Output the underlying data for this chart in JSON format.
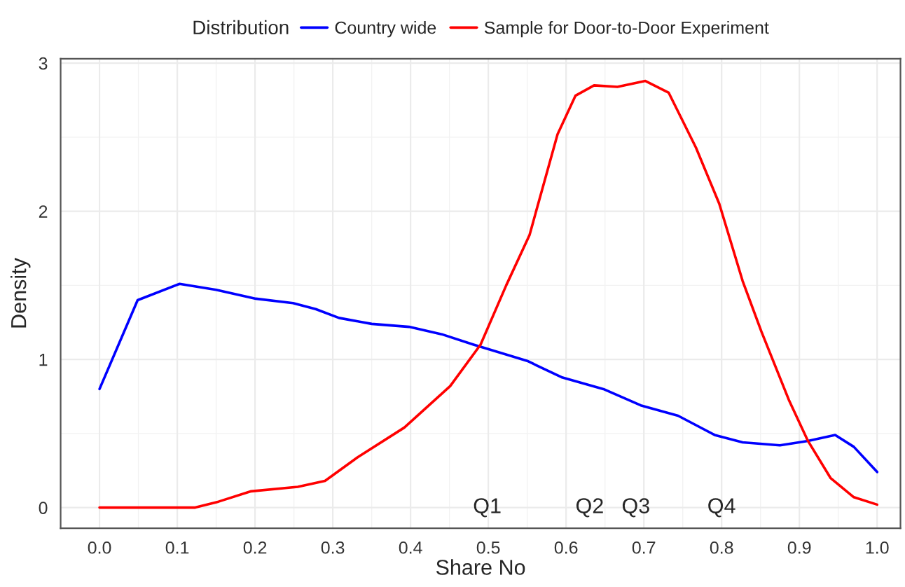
{
  "chart_data": {
    "type": "line",
    "xlabel": "Share No",
    "ylabel": "Density",
    "legend_title": "Distribution",
    "legend": "top",
    "grid": true,
    "line_style": "solid",
    "marker": "none",
    "xlim": [
      -0.05,
      1.03
    ],
    "ylim": [
      -0.14,
      3.03
    ],
    "xticks": [
      {
        "value": 0,
        "label": "0.0"
      },
      {
        "value": 0.1,
        "label": "0.1"
      },
      {
        "value": 0.2,
        "label": "0.2"
      },
      {
        "value": 0.3,
        "label": "0.3"
      },
      {
        "value": 0.4,
        "label": "0.4"
      },
      {
        "value": 0.5,
        "label": "0.5"
      },
      {
        "value": 0.6,
        "label": "0.6"
      },
      {
        "value": 0.7,
        "label": "0.7"
      },
      {
        "value": 0.8,
        "label": "0.8"
      },
      {
        "value": 0.9,
        "label": "0.9"
      },
      {
        "value": 1,
        "label": "1.0"
      }
    ],
    "yticks": [
      0,
      1,
      2,
      3
    ],
    "series": [
      {
        "name": "Country wide",
        "color": "#0000ff",
        "x": [
          0,
          0.049,
          0.103,
          0.15,
          0.201,
          0.249,
          0.278,
          0.308,
          0.35,
          0.398,
          0.44,
          0.481,
          0.55,
          0.594,
          0.648,
          0.696,
          0.744,
          0.791,
          0.827,
          0.875,
          0.911,
          0.946,
          0.97,
          1.0
        ],
        "values": [
          0.8,
          1.4,
          1.51,
          1.47,
          1.41,
          1.38,
          1.34,
          1.28,
          1.24,
          1.22,
          1.17,
          1.1,
          0.99,
          0.88,
          0.8,
          0.69,
          0.62,
          0.49,
          0.44,
          0.42,
          0.45,
          0.49,
          0.41,
          0.24
        ]
      },
      {
        "name": "Sample for Door-to-Door Experiment",
        "color": "#ff0000",
        "x": [
          0,
          0.123,
          0.153,
          0.195,
          0.255,
          0.29,
          0.332,
          0.392,
          0.451,
          0.49,
          0.523,
          0.553,
          0.589,
          0.612,
          0.636,
          0.666,
          0.702,
          0.732,
          0.767,
          0.797,
          0.827,
          0.851,
          0.887,
          0.911,
          0.94,
          0.97,
          1.0
        ],
        "values": [
          0,
          0,
          0.04,
          0.11,
          0.14,
          0.18,
          0.34,
          0.54,
          0.82,
          1.1,
          1.5,
          1.84,
          2.52,
          2.78,
          2.85,
          2.84,
          2.88,
          2.8,
          2.43,
          2.05,
          1.53,
          1.19,
          0.72,
          0.45,
          0.2,
          0.07,
          0.02
        ]
      }
    ],
    "annotations": [
      "Q1",
      "Q2",
      "Q3",
      "Q4"
    ]
  }
}
